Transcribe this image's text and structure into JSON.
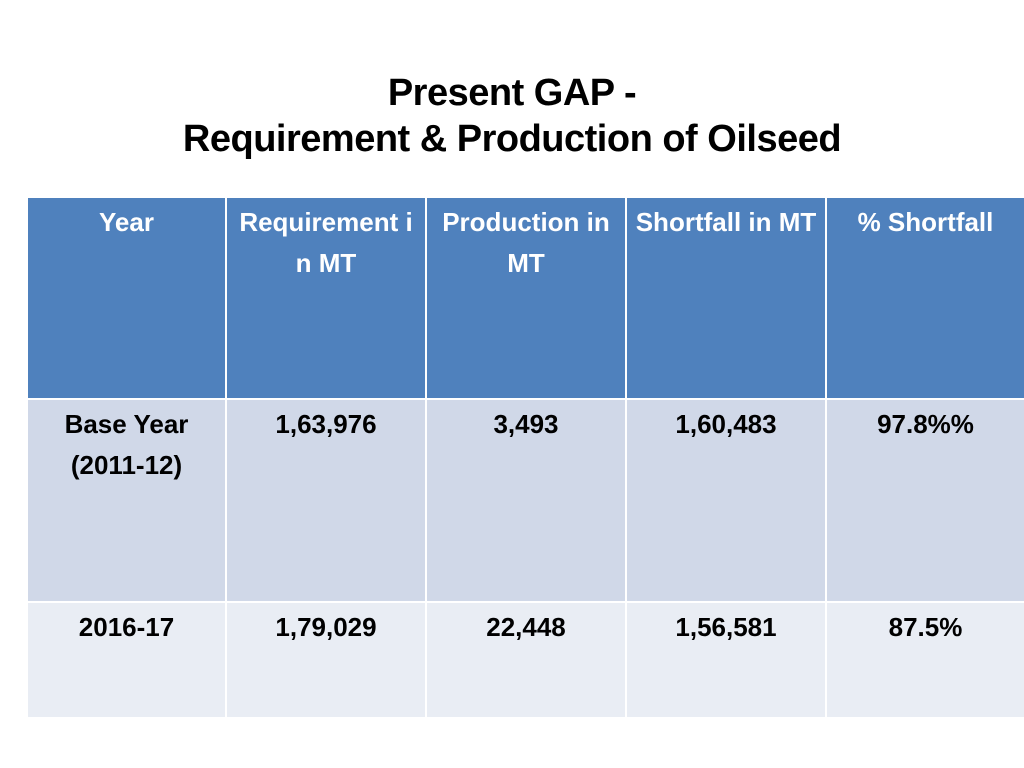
{
  "title": {
    "line1": "Present GAP -",
    "line2": "Requirement & Production of Oilseed"
  },
  "table": {
    "headers": [
      "Year",
      "Requirement in MT",
      "Production in MT",
      "Shortfall in MT",
      "% Shortfall"
    ],
    "rows": [
      {
        "year_line1": "Base Year",
        "year_line2": "(2011-12)",
        "requirement": "1,63,976",
        "production": "3,493",
        "shortfall": "1,60,483",
        "percent_shortfall": "97.8%%"
      },
      {
        "year_line1": "2016-17",
        "year_line2": "",
        "requirement": "1,79,029",
        "production": "22,448",
        "shortfall": "1,56,581",
        "percent_shortfall": "87.5%"
      }
    ]
  },
  "colors": {
    "header_bg": "#4f81bd",
    "row1_bg": "#d0d8e8",
    "row2_bg": "#e9edf4"
  }
}
